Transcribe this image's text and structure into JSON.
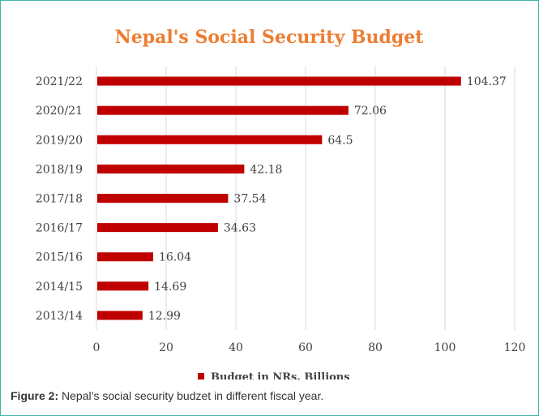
{
  "chart_data": {
    "type": "bar",
    "orientation": "horizontal",
    "title": "Nepal's Social Security Budget",
    "categories": [
      "2021/22",
      "2020/21",
      "2019/20",
      "2018/19",
      "2017/18",
      "2016/17",
      "2015/16",
      "2014/15",
      "2013/14"
    ],
    "series": [
      {
        "name": "Budget in NRs. Billions",
        "values": [
          104.37,
          72.06,
          64.5,
          42.18,
          37.54,
          34.63,
          16.04,
          14.69,
          12.99
        ],
        "value_labels": [
          "104.37",
          "72.06",
          "64.5",
          "42.18",
          "37.54",
          "34.63",
          "16.04",
          "14.69",
          "12.99"
        ]
      }
    ],
    "xlim": [
      0,
      120
    ],
    "xticks": [
      0,
      20,
      40,
      60,
      80,
      100,
      120
    ],
    "grid": "vertical",
    "legend_position": "bottom",
    "colors": {
      "bar": "#c00000",
      "title": "#ed7d31",
      "grid": "#d9d9d9",
      "text": "#404040"
    }
  },
  "caption": {
    "label": "Figure 2:",
    "text": " Nepal’s social security budzet in different fiscal year."
  }
}
